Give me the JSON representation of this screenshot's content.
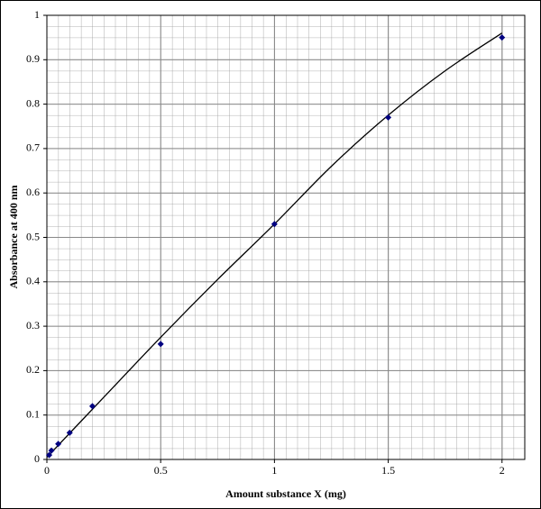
{
  "chart_data": {
    "type": "scatter",
    "xlabel": "Amount substance X (mg)",
    "ylabel": "Absorbance at 400 nm",
    "xlim": [
      0,
      2.1
    ],
    "ylim": [
      0,
      1
    ],
    "xticks": [
      0,
      0.5,
      1,
      1.5,
      2
    ],
    "yticks": [
      0,
      0.1,
      0.2,
      0.3,
      0.4,
      0.5,
      0.6,
      0.7,
      0.8,
      0.9,
      1
    ],
    "grid": true,
    "series": [
      {
        "color": "#000080",
        "x": [
          0.01,
          0.02,
          0.05,
          0.1,
          0.2,
          0.5,
          1,
          1.5,
          2
        ],
        "values": [
          0.01,
          0.02,
          0.035,
          0.06,
          0.12,
          0.26,
          0.53,
          0.77,
          0.95
        ]
      }
    ],
    "trendline": {
      "color": "#000000",
      "x": [
        0,
        0.25,
        0.5,
        0.75,
        1,
        1.25,
        1.5,
        1.75,
        2
      ],
      "values": [
        0.005,
        0.14,
        0.275,
        0.405,
        0.53,
        0.66,
        0.775,
        0.875,
        0.96
      ]
    }
  }
}
